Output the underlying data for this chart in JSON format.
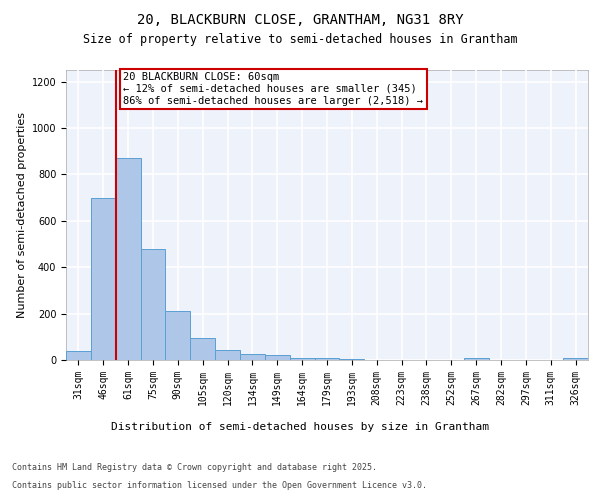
{
  "title_line1": "20, BLACKBURN CLOSE, GRANTHAM, NG31 8RY",
  "title_line2": "Size of property relative to semi-detached houses in Grantham",
  "xlabel": "Distribution of semi-detached houses by size in Grantham",
  "ylabel": "Number of semi-detached properties",
  "categories": [
    "31sqm",
    "46sqm",
    "61sqm",
    "75sqm",
    "90sqm",
    "105sqm",
    "120sqm",
    "134sqm",
    "149sqm",
    "164sqm",
    "179sqm",
    "193sqm",
    "208sqm",
    "223sqm",
    "238sqm",
    "252sqm",
    "267sqm",
    "282sqm",
    "297sqm",
    "311sqm",
    "326sqm"
  ],
  "values": [
    40,
    700,
    870,
    480,
    210,
    95,
    45,
    25,
    20,
    10,
    10,
    5,
    0,
    0,
    0,
    0,
    10,
    0,
    0,
    0,
    10
  ],
  "bar_color": "#aec6e8",
  "bar_edge_color": "#5a9fd4",
  "annotation_text": "20 BLACKBURN CLOSE: 60sqm\n← 12% of semi-detached houses are smaller (345)\n86% of semi-detached houses are larger (2,518) →",
  "annotation_box_color": "#ffffff",
  "annotation_box_edge_color": "#cc0000",
  "vline_color": "#cc0000",
  "ylim": [
    0,
    1250
  ],
  "yticks": [
    0,
    200,
    400,
    600,
    800,
    1000,
    1200
  ],
  "background_color": "#eef2fb",
  "grid_color": "#ffffff",
  "footer_line1": "Contains HM Land Registry data © Crown copyright and database right 2025.",
  "footer_line2": "Contains public sector information licensed under the Open Government Licence v3.0.",
  "title_fontsize": 10,
  "subtitle_fontsize": 8.5,
  "axis_label_fontsize": 8,
  "tick_fontsize": 7,
  "annotation_fontsize": 7.5,
  "footer_fontsize": 6
}
